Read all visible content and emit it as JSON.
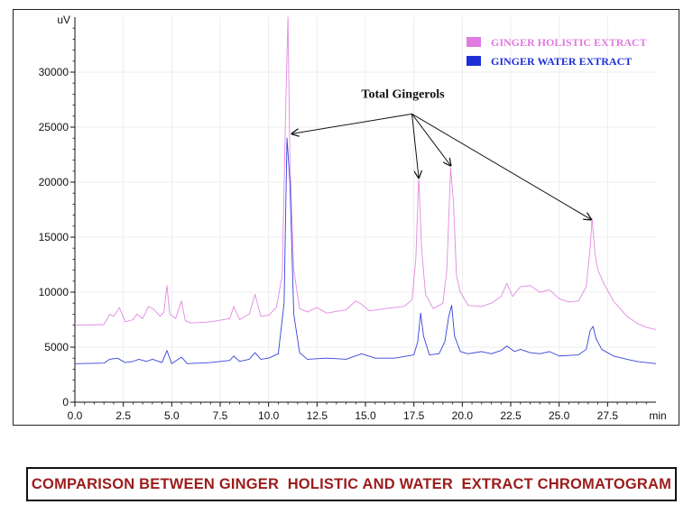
{
  "chart_data": {
    "type": "line",
    "xunit": "min",
    "yunit": "uV",
    "xlim": [
      0,
      30
    ],
    "ylim": [
      0,
      35000
    ],
    "xticks": [
      "0.0",
      "2.5",
      "5.0",
      "7.5",
      "10.0",
      "12.5",
      "15.0",
      "17.5",
      "20.0",
      "22.5",
      "25.0",
      "27.5"
    ],
    "yticks": [
      "0",
      "5000",
      "10000",
      "15000",
      "20000",
      "25000",
      "30000"
    ],
    "grid": true,
    "legend_position": "top-right",
    "series": [
      {
        "name": "GINGER HOLISTIC EXTRACT",
        "color": "#e07be0",
        "x": [
          0,
          1.5,
          1.8,
          2.0,
          2.3,
          2.6,
          3.0,
          3.2,
          3.5,
          3.8,
          4.1,
          4.4,
          4.6,
          4.75,
          4.9,
          5.2,
          5.5,
          5.7,
          6.0,
          7.0,
          8.0,
          8.2,
          8.5,
          9.0,
          9.3,
          9.6,
          10.0,
          10.4,
          10.7,
          10.9,
          11.0,
          11.1,
          11.3,
          11.6,
          12.0,
          12.5,
          13.0,
          14.0,
          14.5,
          14.8,
          15.2,
          16.0,
          17.0,
          17.4,
          17.6,
          17.75,
          17.9,
          18.1,
          18.5,
          19.0,
          19.2,
          19.4,
          19.55,
          19.7,
          19.9,
          20.3,
          21.0,
          21.5,
          22.0,
          22.3,
          22.6,
          23.0,
          23.5,
          24.0,
          24.5,
          25.0,
          25.5,
          26.0,
          26.4,
          26.6,
          26.7,
          26.85,
          27.0,
          27.3,
          27.8,
          28.5,
          29.0,
          29.5,
          30.0
        ],
        "y": [
          7000,
          7050,
          8000,
          7800,
          8600,
          7300,
          7500,
          8000,
          7600,
          8700,
          8400,
          7800,
          8200,
          10600,
          8000,
          7600,
          9200,
          7400,
          7200,
          7300,
          7600,
          8700,
          7500,
          8000,
          9800,
          7800,
          7900,
          8600,
          11500,
          28000,
          35000,
          22000,
          12000,
          8500,
          8200,
          8600,
          8100,
          8400,
          9200,
          8900,
          8300,
          8500,
          8700,
          9300,
          13000,
          20500,
          14000,
          9800,
          8500,
          9000,
          12000,
          21300,
          18000,
          11500,
          10000,
          8800,
          8700,
          9000,
          9600,
          10800,
          9600,
          10500,
          10600,
          10000,
          10200,
          9400,
          9100,
          9200,
          10500,
          14000,
          16700,
          13500,
          12000,
          10800,
          9200,
          7800,
          7200,
          6800,
          6600
        ]
      },
      {
        "name": "GINGER WATER EXTRACT",
        "color": "#1f2fd6",
        "x": [
          0,
          1.5,
          1.8,
          2.2,
          2.6,
          3.0,
          3.3,
          3.7,
          4.0,
          4.5,
          4.75,
          5.0,
          5.5,
          5.8,
          7.0,
          8.0,
          8.2,
          8.5,
          9.0,
          9.3,
          9.6,
          10.0,
          10.5,
          10.8,
          10.95,
          11.1,
          11.3,
          11.6,
          12.0,
          13.0,
          14.0,
          14.8,
          15.5,
          16.5,
          17.5,
          17.7,
          17.85,
          18.0,
          18.3,
          18.8,
          19.1,
          19.3,
          19.45,
          19.6,
          19.9,
          20.3,
          21.0,
          21.5,
          22.0,
          22.3,
          22.7,
          23.0,
          23.5,
          24.0,
          24.5,
          25.0,
          26.0,
          26.4,
          26.6,
          26.75,
          26.9,
          27.2,
          27.8,
          28.5,
          29.0,
          29.5,
          30.0
        ],
        "y": [
          3500,
          3550,
          3900,
          4000,
          3600,
          3700,
          3900,
          3700,
          3900,
          3600,
          4700,
          3500,
          4100,
          3500,
          3600,
          3800,
          4200,
          3700,
          3900,
          4500,
          3900,
          4000,
          4400,
          9000,
          24000,
          20000,
          8000,
          4500,
          3900,
          4000,
          3900,
          4400,
          4000,
          4000,
          4300,
          5500,
          8100,
          6000,
          4300,
          4400,
          5500,
          7800,
          8800,
          6000,
          4600,
          4400,
          4600,
          4400,
          4700,
          5100,
          4600,
          4800,
          4500,
          4400,
          4600,
          4200,
          4300,
          4800,
          6500,
          6900,
          5800,
          4800,
          4200,
          3900,
          3700,
          3600,
          3500
        ]
      }
    ],
    "annotation": {
      "text": "Total Gingerols",
      "origin": [
        17.4,
        26200
      ],
      "targets": [
        [
          11.2,
          24400
        ],
        [
          17.75,
          20400
        ],
        [
          19.4,
          21500
        ],
        [
          26.65,
          16600
        ]
      ]
    }
  },
  "caption": "COMPARISON BETWEEN GINGER  HOLISTIC AND WATER  EXTRACT CHROMATOGRAM"
}
